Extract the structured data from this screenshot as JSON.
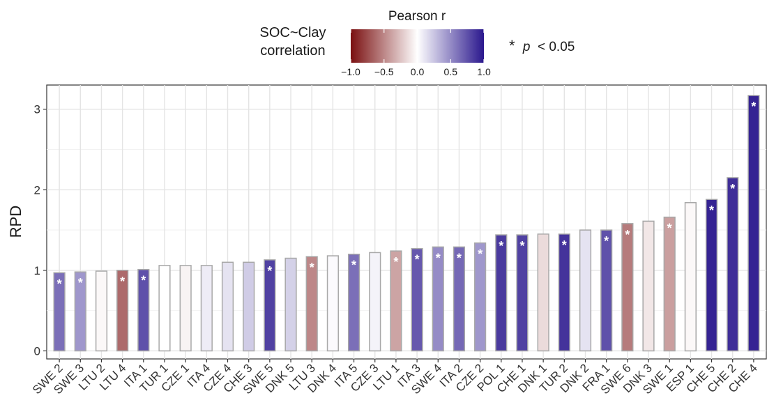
{
  "chart_data": {
    "type": "bar",
    "ylabel": "RPD",
    "xlabel": "",
    "ylim": [
      -0.1,
      3.3
    ],
    "yticks": [
      0,
      1,
      2,
      3
    ],
    "grid": true,
    "legend": {
      "position": "top",
      "correlation_title": "SOC~Clay\ncorrelation",
      "colorbar_title": "Pearson r",
      "colorbar_ticks": [
        "-1.0",
        "-0.5",
        "0.0",
        "0.5",
        "1.0"
      ],
      "colorbar_range": [
        -1.0,
        1.0
      ],
      "significance_marker": "*",
      "significance_p": "p",
      "significance_rest": " < 0.05"
    },
    "colors": {
      "negative": "#7a0f10",
      "neutral": "#ffffff",
      "positive": "#2a178d"
    },
    "bars": [
      {
        "site": "SWE 2",
        "rpd": 0.97,
        "r": 0.62,
        "sig": true
      },
      {
        "site": "SWE 3",
        "rpd": 0.98,
        "r": 0.45,
        "sig": true
      },
      {
        "site": "LTU 2",
        "rpd": 0.99,
        "r": -0.03,
        "sig": false
      },
      {
        "site": "LTU 4",
        "rpd": 1.0,
        "r": -0.62,
        "sig": true
      },
      {
        "site": "ITA 1",
        "rpd": 1.01,
        "r": 0.75,
        "sig": true
      },
      {
        "site": "TUR 1",
        "rpd": 1.06,
        "r": 0.0,
        "sig": false
      },
      {
        "site": "CZE 1",
        "rpd": 1.06,
        "r": -0.05,
        "sig": false
      },
      {
        "site": "ITA 4",
        "rpd": 1.06,
        "r": 0.08,
        "sig": false
      },
      {
        "site": "CZE 4",
        "rpd": 1.1,
        "r": 0.12,
        "sig": false
      },
      {
        "site": "CHE 3",
        "rpd": 1.1,
        "r": 0.22,
        "sig": false
      },
      {
        "site": "SWE 5",
        "rpd": 1.13,
        "r": 0.82,
        "sig": true
      },
      {
        "site": "DNK 5",
        "rpd": 1.15,
        "r": 0.2,
        "sig": false
      },
      {
        "site": "LTU 3",
        "rpd": 1.17,
        "r": -0.5,
        "sig": true
      },
      {
        "site": "DNK 4",
        "rpd": 1.18,
        "r": 0.02,
        "sig": false
      },
      {
        "site": "ITA 5",
        "rpd": 1.2,
        "r": 0.62,
        "sig": true
      },
      {
        "site": "CZE 3",
        "rpd": 1.22,
        "r": 0.05,
        "sig": false
      },
      {
        "site": "LTU 1",
        "rpd": 1.24,
        "r": -0.38,
        "sig": true
      },
      {
        "site": "ITA 3",
        "rpd": 1.27,
        "r": 0.72,
        "sig": true
      },
      {
        "site": "SWE 4",
        "rpd": 1.29,
        "r": 0.5,
        "sig": true
      },
      {
        "site": "ITA 2",
        "rpd": 1.29,
        "r": 0.65,
        "sig": true
      },
      {
        "site": "CZE 2",
        "rpd": 1.34,
        "r": 0.45,
        "sig": true
      },
      {
        "site": "POL 1",
        "rpd": 1.44,
        "r": 0.85,
        "sig": true
      },
      {
        "site": "CHE 1",
        "rpd": 1.44,
        "r": 0.82,
        "sig": true
      },
      {
        "site": "DNK 1",
        "rpd": 1.45,
        "r": -0.15,
        "sig": false
      },
      {
        "site": "TUR 2",
        "rpd": 1.45,
        "r": 0.88,
        "sig": true
      },
      {
        "site": "DNK 2",
        "rpd": 1.5,
        "r": 0.12,
        "sig": false
      },
      {
        "site": "FRA 1",
        "rpd": 1.5,
        "r": 0.75,
        "sig": true
      },
      {
        "site": "SWE 6",
        "rpd": 1.58,
        "r": -0.55,
        "sig": true
      },
      {
        "site": "DNK 3",
        "rpd": 1.61,
        "r": -0.1,
        "sig": false
      },
      {
        "site": "SWE 1",
        "rpd": 1.66,
        "r": -0.4,
        "sig": true
      },
      {
        "site": "ESP 1",
        "rpd": 1.84,
        "r": -0.03,
        "sig": false
      },
      {
        "site": "CHE 5",
        "rpd": 1.88,
        "r": 0.95,
        "sig": true
      },
      {
        "site": "CHE 2",
        "rpd": 2.15,
        "r": 0.9,
        "sig": true
      },
      {
        "site": "CHE 4",
        "rpd": 3.17,
        "r": 0.95,
        "sig": true
      }
    ]
  }
}
